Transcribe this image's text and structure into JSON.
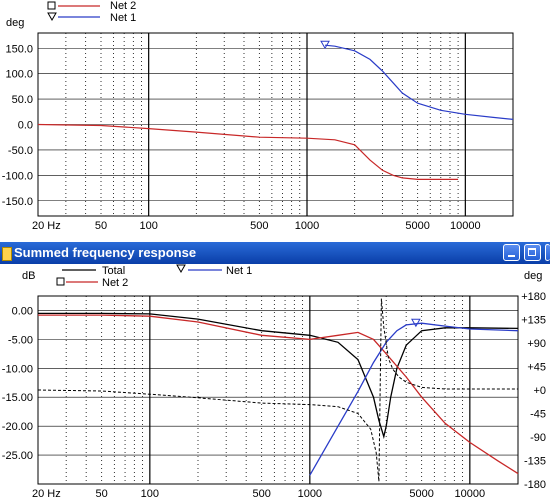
{
  "top_chart": {
    "ylabel": "deg",
    "legend": [
      {
        "marker": "square",
        "name": "Net 2",
        "color": "#c82828"
      },
      {
        "marker": "triangle",
        "name": "Net 1",
        "color": "#2a3cc8"
      }
    ],
    "x_ticks": [
      "20 Hz",
      "50",
      "100",
      "500",
      "1000",
      "5000",
      "10000"
    ],
    "y_ticks": [
      "150.0",
      "100.0",
      "50.0",
      "0.0",
      "-50.0",
      "-100.0",
      "-150.0"
    ]
  },
  "window": {
    "title": "Summed frequency response"
  },
  "bottom_chart": {
    "ylabel_left": "dB",
    "ylabel_right": "deg",
    "legend": [
      {
        "marker": "line",
        "name": "Total",
        "color": "#000000"
      },
      {
        "marker": "triangle",
        "name": "Net 1",
        "color": "#2a3cc8"
      },
      {
        "marker": "square",
        "name": "Net 2",
        "color": "#c82828"
      }
    ],
    "x_ticks": [
      "20 Hz",
      "50",
      "100",
      "500",
      "1000",
      "5000",
      "10000"
    ],
    "y_ticks_left": [
      "0.00",
      "-5.00",
      "-10.00",
      "-15.00",
      "-20.00",
      "-25.00"
    ],
    "y_ticks_right": [
      "+180",
      "+135",
      "+90",
      "+45",
      "+0",
      "-45",
      "-90",
      "-135",
      "-180"
    ]
  },
  "chart_data": [
    {
      "type": "line",
      "title": "",
      "xlabel": "",
      "ylabel": "deg",
      "x_scale": "log",
      "xlim": [
        20,
        20000
      ],
      "ylim": [
        -180,
        180
      ],
      "grid": true,
      "series": [
        {
          "name": "Net 2",
          "color": "#c82828",
          "x": [
            20,
            50,
            100,
            200,
            500,
            1000,
            1500,
            2000,
            2500,
            3000,
            3500,
            4000,
            5000,
            7000,
            9000
          ],
          "y": [
            0,
            -2,
            -8,
            -15,
            -25,
            -27,
            -30,
            -40,
            -70,
            -90,
            -100,
            -105,
            -108,
            -108,
            -108
          ]
        },
        {
          "name": "Net 1",
          "color": "#2a3cc8",
          "x": [
            1300,
            1500,
            2000,
            2500,
            3000,
            3500,
            4000,
            5000,
            7000,
            10000,
            15000,
            20000
          ],
          "y": [
            156,
            154,
            145,
            128,
            105,
            82,
            62,
            42,
            28,
            20,
            14,
            10
          ]
        }
      ]
    },
    {
      "type": "line",
      "title": "Summed frequency response",
      "xlabel": "",
      "ylabel": "dB",
      "y2label": "deg",
      "x_scale": "log",
      "xlim": [
        20,
        20000
      ],
      "ylim": [
        -30,
        2.5
      ],
      "y2lim": [
        -180,
        180
      ],
      "grid": true,
      "series": [
        {
          "name": "Total",
          "color": "#000000",
          "axis": "left",
          "x": [
            20,
            50,
            100,
            200,
            500,
            1000,
            1500,
            2000,
            2500,
            2700,
            2900,
            3000,
            3200,
            3500,
            4000,
            5000,
            7000,
            10000,
            20000
          ],
          "y": [
            -0.5,
            -0.5,
            -0.6,
            -1.5,
            -3.5,
            -4.3,
            -5.5,
            -8.5,
            -15,
            -19,
            -21.8,
            -20,
            -15,
            -10,
            -6,
            -3.5,
            -3,
            -3,
            -3.1
          ]
        },
        {
          "name": "Net 2",
          "color": "#c82828",
          "axis": "left",
          "x": [
            20,
            50,
            100,
            200,
            500,
            1000,
            1500,
            2000,
            2500,
            3000,
            4000,
            5000,
            7000,
            10000,
            15000,
            20000
          ],
          "y": [
            -0.8,
            -0.8,
            -1.0,
            -2.0,
            -4.3,
            -5.0,
            -4.3,
            -3.8,
            -5.0,
            -7.5,
            -11.5,
            -15,
            -19.5,
            -22.8,
            -26,
            -28.2
          ]
        },
        {
          "name": "Net 1",
          "color": "#2a3cc8",
          "axis": "left",
          "x": [
            1000,
            1500,
            2000,
            2500,
            3000,
            3500,
            4000,
            5000,
            7000,
            10000,
            20000
          ],
          "y": [
            -28.5,
            -20,
            -14,
            -9,
            -5.5,
            -3.5,
            -2.5,
            -2.2,
            -2.7,
            -3.2,
            -3.5
          ]
        },
        {
          "name": "Total phase",
          "color": "#000000",
          "dashed": true,
          "axis": "right",
          "x": [
            20,
            50,
            100,
            200,
            500,
            1000,
            1500,
            2000,
            2400,
            2600,
            2700,
            2800,
            2900,
            3000,
            3100,
            3300,
            3600,
            4000,
            5000,
            7000,
            10000,
            20000
          ],
          "y": [
            0,
            -2,
            -8,
            -15,
            -25,
            -28,
            -32,
            -45,
            -75,
            -120,
            -175,
            175,
            120,
            90,
            60,
            40,
            25,
            15,
            5,
            2,
            2,
            2
          ]
        }
      ]
    }
  ]
}
